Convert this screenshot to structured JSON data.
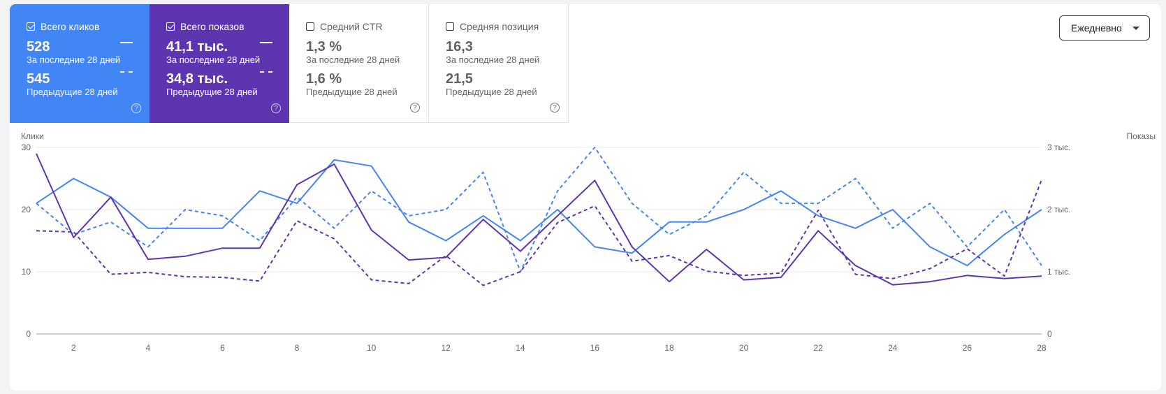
{
  "tiles": {
    "clicks": {
      "label": "Всего кликов",
      "checked": true,
      "value_current": "528",
      "label_current": "За последние 28 дней",
      "value_previous": "545",
      "label_previous": "Предыдущие 28 дней",
      "help": "?"
    },
    "impressions": {
      "label": "Всего показов",
      "checked": true,
      "value_current": "41,1 тыс.",
      "label_current": "За последние 28 дней",
      "value_previous": "34,8 тыс.",
      "label_previous": "Предыдущие 28 дней",
      "help": "?"
    },
    "ctr": {
      "label": "Средний CTR",
      "checked": false,
      "value_current": "1,3 %",
      "label_current": "За последние 28 дней",
      "value_previous": "1,6 %",
      "label_previous": "Предыдущие 28 дней",
      "help": "?"
    },
    "position": {
      "label": "Средняя позиция",
      "checked": false,
      "value_current": "16,3",
      "label_current": "За последние 28 дней",
      "value_previous": "21,5",
      "label_previous": "Предыдущие 28 дней",
      "help": "?"
    }
  },
  "period_select": {
    "value": "Ежедневно"
  },
  "colors": {
    "clicks": "#4285f4",
    "impressions": "#5e35b1",
    "grid": "#e8eaed",
    "axis": "#5f6368"
  },
  "chart_data": {
    "type": "line",
    "left_axis_label": "Клики",
    "right_axis_label": "Показы",
    "left_ticks": [
      "0",
      "10",
      "20",
      "30"
    ],
    "right_ticks": [
      "0",
      "1 тыс.",
      "2 тыс.",
      "3 тыс."
    ],
    "x_ticks": [
      "2",
      "4",
      "6",
      "8",
      "10",
      "12",
      "14",
      "16",
      "18",
      "20",
      "22",
      "24",
      "26",
      "28"
    ],
    "ylim_left": [
      0,
      30
    ],
    "ylim_right": [
      0,
      3000
    ],
    "grid": true,
    "x": [
      1,
      2,
      3,
      4,
      5,
      6,
      7,
      8,
      9,
      10,
      11,
      12,
      13,
      14,
      15,
      16,
      17,
      18,
      19,
      20,
      21,
      22,
      23,
      24,
      25,
      26,
      27,
      28
    ],
    "series": [
      {
        "key": "clicks_current",
        "axis": "left",
        "style": "solid",
        "values": [
          21,
          25,
          22,
          17,
          17,
          17,
          23,
          21,
          28,
          27,
          18,
          15,
          19,
          15,
          20,
          14,
          13,
          18,
          18,
          20,
          23,
          19,
          17,
          20,
          14,
          11,
          16,
          20
        ]
      },
      {
        "key": "clicks_previous",
        "axis": "left",
        "style": "dashed",
        "values": [
          21,
          16,
          18,
          14,
          20,
          19,
          15,
          22,
          17,
          23,
          19,
          20,
          26,
          10,
          23,
          30,
          21,
          16,
          19,
          26,
          21,
          21,
          25,
          17,
          21,
          14,
          20,
          11
        ]
      },
      {
        "key": "impressions_current",
        "axis": "right",
        "style": "solid",
        "values": [
          2900,
          1550,
          2200,
          1200,
          1250,
          1380,
          1380,
          2400,
          2730,
          1670,
          1190,
          1230,
          1840,
          1330,
          1900,
          2470,
          1400,
          840,
          1360,
          870,
          910,
          1660,
          1100,
          790,
          840,
          940,
          890,
          930
        ]
      },
      {
        "key": "impressions_previous",
        "axis": "right",
        "style": "dashed",
        "values": [
          1660,
          1640,
          960,
          990,
          920,
          910,
          850,
          1820,
          1530,
          870,
          810,
          1260,
          780,
          1000,
          1790,
          2060,
          1170,
          1260,
          1010,
          940,
          980,
          1990,
          960,
          890,
          1050,
          1370,
          930,
          2480
        ]
      }
    ]
  }
}
